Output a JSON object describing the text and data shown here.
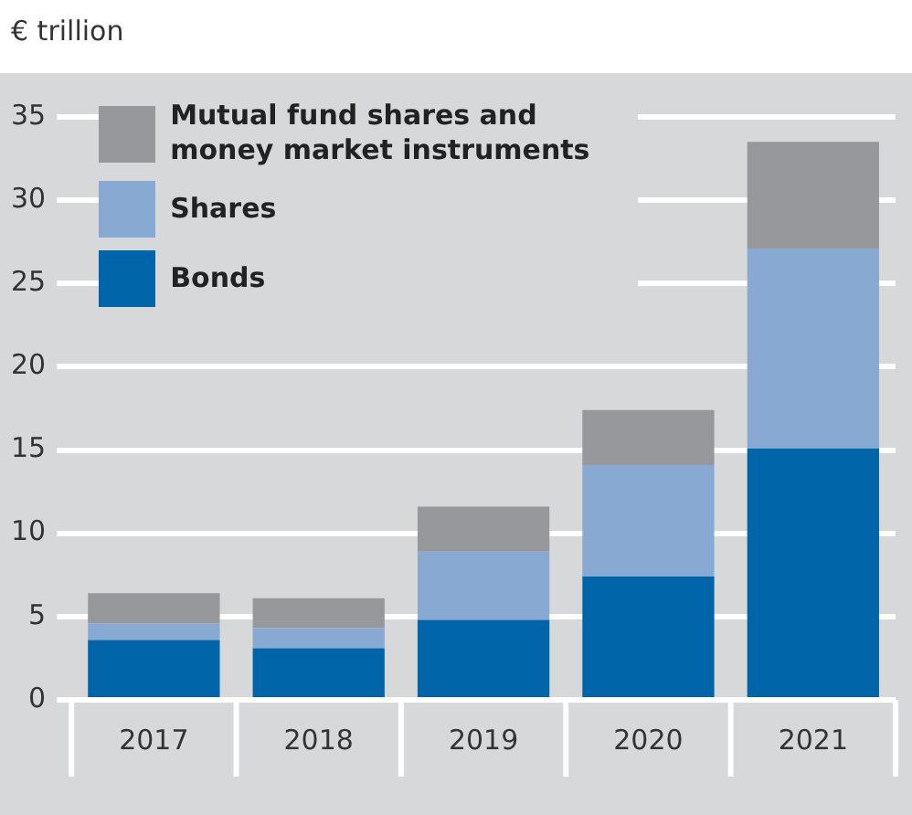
{
  "chart_data": {
    "type": "bar",
    "ylabel": "€ trillion",
    "categories": [
      "2017",
      "2018",
      "2019",
      "2020",
      "2021"
    ],
    "stacked": true,
    "series": [
      {
        "name": "Bonds",
        "color": "#0064a8",
        "values": [
          3.6,
          3.1,
          4.8,
          7.4,
          15.1
        ]
      },
      {
        "name": "Shares",
        "color": "#88aad2",
        "values": [
          1.0,
          1.2,
          4.1,
          6.7,
          12.0
        ]
      },
      {
        "name": "Mutual fund shares and money market instruments",
        "color": "#97989c",
        "values": [
          1.8,
          1.8,
          2.7,
          3.3,
          6.4
        ]
      }
    ],
    "ylim": [
      0,
      35
    ],
    "yticks": [
      0,
      5,
      10,
      15,
      20,
      25,
      30,
      35
    ],
    "grid": "y",
    "legend": "top left"
  }
}
